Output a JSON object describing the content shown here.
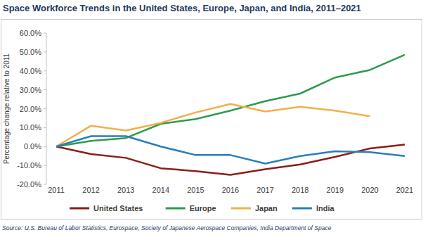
{
  "chart_data": {
    "type": "line",
    "title": "Space Workforce Trends in the United States, Europe, Japan, and India, 2011–2021",
    "y_label": "Percentage change relative to 2011",
    "source": "Source: U.S. Bureau of Labor Statistics, Eurospace, Society of Japanese Aerospace Companies, India Department of Space",
    "categories": [
      "2011",
      "2012",
      "2013",
      "2014",
      "2015",
      "2016",
      "2017",
      "2018",
      "2019",
      "2020",
      "2021"
    ],
    "series": [
      {
        "name": "United States",
        "color": "#8c1d18",
        "values": [
          0,
          -4,
          -6,
          -11.5,
          -13,
          -15,
          -12,
          -9.5,
          -5.5,
          -1,
          1
        ]
      },
      {
        "name": "Europe",
        "color": "#2f9a4f",
        "values": [
          0,
          3,
          4.5,
          12,
          14.5,
          19,
          24,
          28,
          36.5,
          40.5,
          48.5
        ]
      },
      {
        "name": "Japan",
        "color": "#f0b04a",
        "values": [
          0,
          11,
          8.5,
          12.5,
          18,
          22.5,
          18.5,
          21,
          19,
          16,
          null
        ]
      },
      {
        "name": "India",
        "color": "#2a7fb8",
        "values": [
          0,
          5.5,
          5.5,
          0,
          -4.5,
          -4.5,
          -9,
          -5,
          -2.5,
          -3,
          -5
        ]
      }
    ],
    "ylim": [
      -20,
      60
    ],
    "yticks": [
      {
        "value": -20,
        "label": "-20.0%"
      },
      {
        "value": -10,
        "label": "-10.0%"
      },
      {
        "value": 0,
        "label": "0.0%"
      },
      {
        "value": 10,
        "label": "10.0%"
      },
      {
        "value": 20,
        "label": "20.0%"
      },
      {
        "value": 30,
        "label": "30.0%"
      },
      {
        "value": 40,
        "label": "40.0%"
      },
      {
        "value": 50,
        "label": "50.0%"
      },
      {
        "value": 60,
        "label": "60.0%"
      }
    ],
    "grid": false,
    "legend": "bottom"
  }
}
